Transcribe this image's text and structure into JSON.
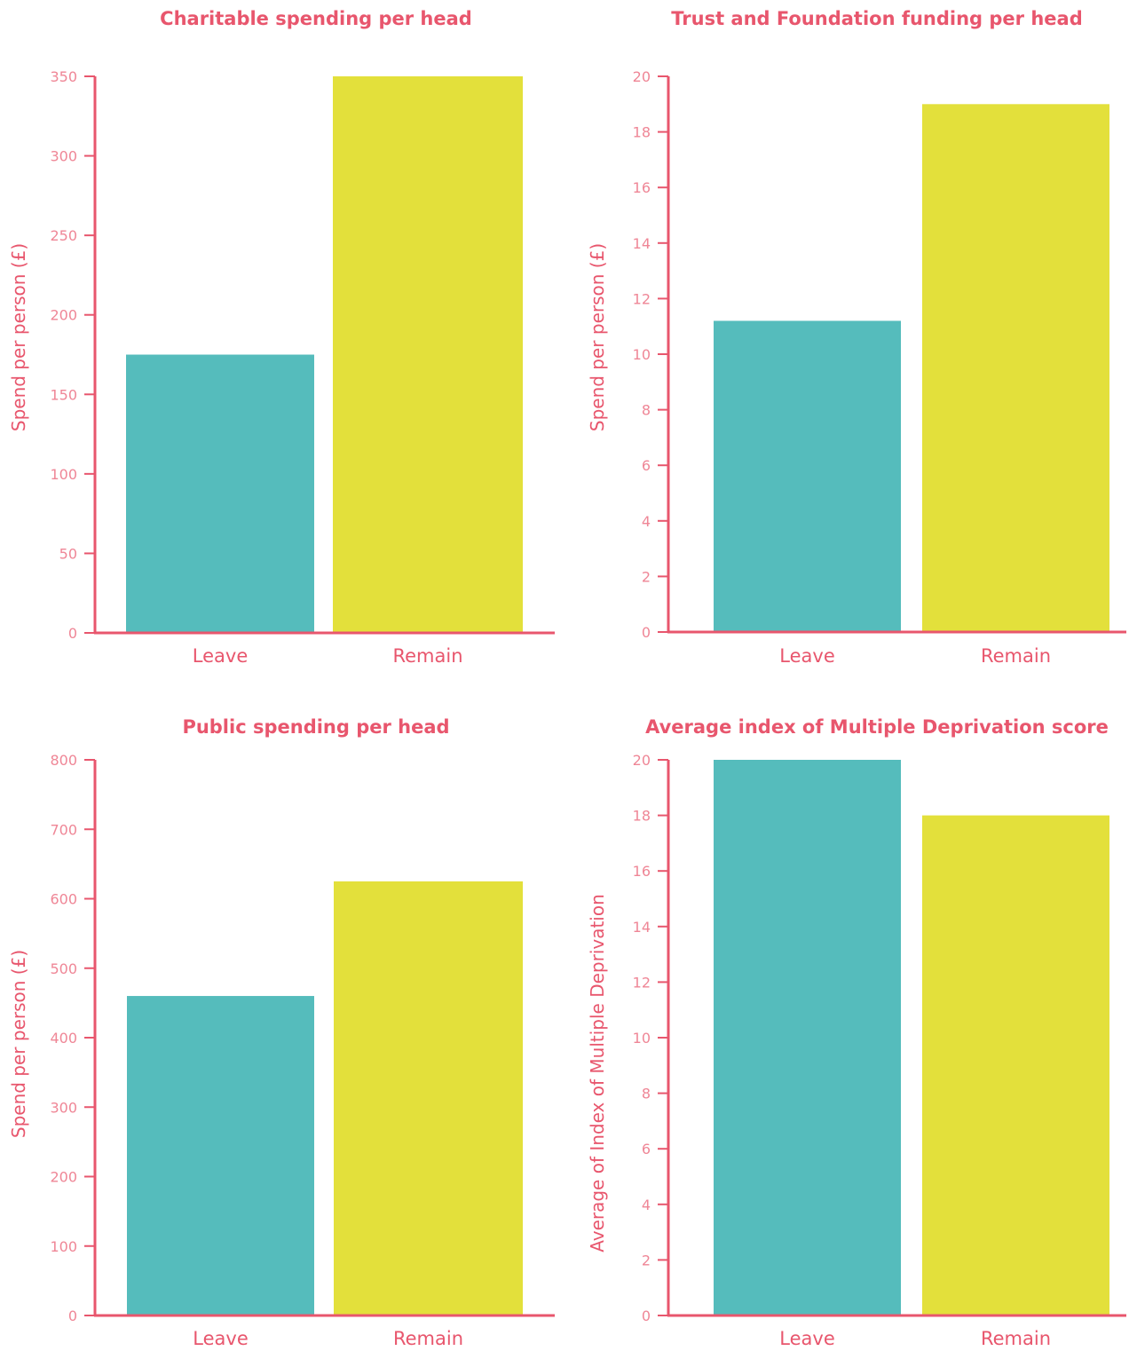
{
  "colors": {
    "accent": "#e8566d",
    "tick_text": "#ef8696",
    "leave": "#55bcbc",
    "remain": "#e3e03b"
  },
  "chart_data": [
    {
      "type": "bar",
      "title": "Charitable spending per head",
      "ylabel": "Spend per person (£)",
      "xlabel": "",
      "categories": [
        "Leave",
        "Remain"
      ],
      "values": [
        175,
        350
      ],
      "ylim": [
        0,
        350
      ],
      "yticks": [
        0,
        50,
        100,
        150,
        200,
        250,
        300,
        350
      ],
      "grid": false
    },
    {
      "type": "bar",
      "title": "Trust and Foundation funding per head",
      "ylabel": "Spend per person (£)",
      "xlabel": "",
      "categories": [
        "Leave",
        "Remain"
      ],
      "values": [
        11.2,
        19.0
      ],
      "ylim": [
        0,
        20
      ],
      "yticks": [
        0,
        2,
        4,
        6,
        8,
        10,
        12,
        14,
        16,
        18,
        20
      ],
      "grid": false
    },
    {
      "type": "bar",
      "title": "Public spending per head",
      "ylabel": "Spend per person (£)",
      "xlabel": "",
      "categories": [
        "Leave",
        "Remain"
      ],
      "values": [
        460,
        625
      ],
      "ylim": [
        0,
        800
      ],
      "yticks": [
        0,
        100,
        200,
        300,
        400,
        500,
        600,
        700,
        800
      ],
      "grid": false
    },
    {
      "type": "bar",
      "title": "Average index of Multiple Deprivation score",
      "ylabel": "Average of Index of Multiple Deprivation",
      "xlabel": "",
      "categories": [
        "Leave",
        "Remain"
      ],
      "values": [
        20,
        18
      ],
      "ylim": [
        0,
        20
      ],
      "yticks": [
        0,
        2,
        4,
        6,
        8,
        10,
        12,
        14,
        16,
        18,
        20
      ],
      "grid": false
    }
  ]
}
